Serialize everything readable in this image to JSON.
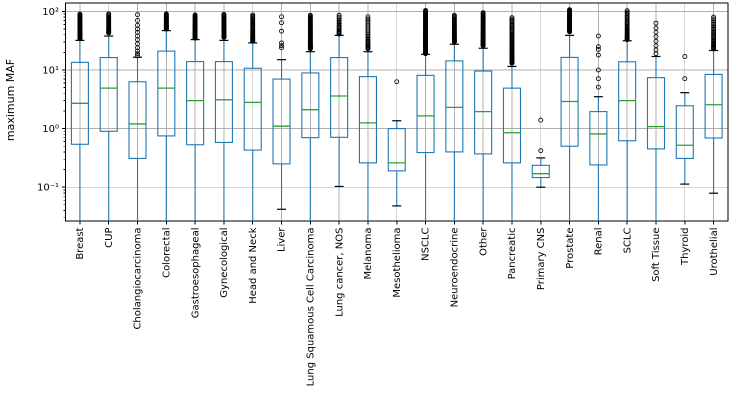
{
  "figure": {
    "title": "",
    "background": "#ffffff"
  },
  "chart_data": {
    "type": "boxplot",
    "orientation": "vertical",
    "yscale": "log",
    "ylabel": "maximum MAF",
    "xlabel": "",
    "ylim": [
      0.0265,
      139
    ],
    "ytick_values": [
      100,
      10,
      1,
      0.1
    ],
    "ytick_labels": [
      "10²",
      "10¹",
      "10⁰",
      "10⁻¹"
    ],
    "grid": true,
    "legend": null,
    "colors": {
      "box": "#1f77b4",
      "whisker": "#1f77b4",
      "median": "#2ca02c",
      "cap": "#000000",
      "flier": "#000000",
      "grid": "#b0b0b0",
      "spine": "#000000",
      "background": "#ffffff"
    },
    "categories": [
      "Breast",
      "CUP",
      "Cholangiocarcinoma",
      "Colorectal",
      "Gastroesophageal",
      "Gynecological",
      "Head and Neck",
      "Liver",
      "Lung Squamous Cell Carcinoma",
      "Lung cancer, NOS",
      "Melanoma",
      "Mesothelioma",
      "NSCLC",
      "Neuroendocrine",
      "Other",
      "Pancreatic",
      "Primary CNS",
      "Prostate",
      "Renal",
      "SCLC",
      "Soft Tissue",
      "Thyroid",
      "Urothelial"
    ],
    "boxes": [
      {
        "label": "Breast",
        "whisker_low": null,
        "q1": 0.54,
        "median": 2.7,
        "q3": 13.5,
        "whisker_high": 32,
        "flier_band": {
          "low": 34,
          "high": 90,
          "count": 45
        }
      },
      {
        "label": "CUP",
        "whisker_low": null,
        "q1": 0.9,
        "median": 4.9,
        "q3": 16.3,
        "whisker_high": 38,
        "flier_band": {
          "low": 43,
          "high": 91,
          "count": 26
        }
      },
      {
        "label": "Cholangiocarcinoma",
        "whisker_low": null,
        "q1": 0.31,
        "median": 1.2,
        "q3": 6.3,
        "whisker_high": 16.5,
        "fliers": [
          88,
          70,
          58,
          50,
          44,
          38,
          33,
          28,
          24,
          21,
          19,
          17.5
        ]
      },
      {
        "label": "Colorectal",
        "whisker_low": null,
        "q1": 0.75,
        "median": 4.9,
        "q3": 21,
        "whisker_high": 47,
        "flier_band": {
          "low": 50,
          "high": 91,
          "count": 40
        }
      },
      {
        "label": "Gastroesophageal",
        "whisker_low": null,
        "q1": 0.53,
        "median": 3.0,
        "q3": 13.9,
        "whisker_high": 33,
        "flier_band": {
          "low": 35,
          "high": 87,
          "count": 45
        }
      },
      {
        "label": "Gynecological",
        "whisker_low": null,
        "q1": 0.58,
        "median": 3.1,
        "q3": 13.9,
        "whisker_high": 32,
        "flier_band": {
          "low": 36,
          "high": 89,
          "count": 36
        }
      },
      {
        "label": "Head and Neck",
        "whisker_low": null,
        "q1": 0.43,
        "median": 2.8,
        "q3": 10.7,
        "whisker_high": 29,
        "flier_band": {
          "low": 31,
          "high": 87,
          "count": 32
        }
      },
      {
        "label": "Liver",
        "whisker_low": 0.042,
        "q1": 0.25,
        "median": 1.1,
        "q3": 7.0,
        "whisker_high": 15,
        "fliers": [
          81,
          64,
          46,
          29,
          26,
          24
        ]
      },
      {
        "label": "Lung Squamous Cell Carcinoma",
        "whisker_low": null,
        "q1": 0.7,
        "median": 2.1,
        "q3": 8.9,
        "whisker_high": 20.5,
        "flier_band": {
          "low": 23,
          "high": 86,
          "count": 55
        }
      },
      {
        "label": "Lung cancer, NOS",
        "whisker_low": 0.103,
        "q1": 0.71,
        "median": 3.6,
        "q3": 16.3,
        "whisker_high": 39,
        "flier_band": {
          "low": 41,
          "high": 86,
          "count": 16
        }
      },
      {
        "label": "Melanoma",
        "whisker_low": null,
        "q1": 0.26,
        "median": 1.25,
        "q3": 7.7,
        "whisker_high": 20.5,
        "flier_band": {
          "low": 23,
          "high": 81,
          "count": 22
        }
      },
      {
        "label": "Mesothelioma",
        "whisker_low": 0.048,
        "q1": 0.19,
        "median": 0.26,
        "q3": 1.0,
        "whisker_high": 1.36,
        "fliers": [
          6.3
        ]
      },
      {
        "label": "NSCLC",
        "whisker_low": null,
        "q1": 0.39,
        "median": 1.65,
        "q3": 8.1,
        "whisker_high": 18.5,
        "flier_band": {
          "low": 19,
          "high": 104,
          "count": 80
        }
      },
      {
        "label": "Neuroendocrine",
        "whisker_low": null,
        "q1": 0.4,
        "median": 2.3,
        "q3": 14.3,
        "whisker_high": 27.5,
        "flier_band": {
          "low": 30,
          "high": 86,
          "count": 36
        }
      },
      {
        "label": "Other",
        "whisker_low": null,
        "q1": 0.37,
        "median": 1.95,
        "q3": 9.6,
        "whisker_high": 23.5,
        "flier_band": {
          "low": 26,
          "high": 95,
          "count": 55
        }
      },
      {
        "label": "Pancreatic",
        "whisker_low": null,
        "q1": 0.26,
        "median": 0.85,
        "q3": 4.9,
        "whisker_high": 11.5,
        "flier_band": {
          "low": 13,
          "high": 78,
          "count": 50
        }
      },
      {
        "label": "Primary CNS",
        "whisker_low": 0.1,
        "q1": 0.146,
        "median": 0.17,
        "q3": 0.236,
        "whisker_high": 0.316,
        "fliers": [
          1.39,
          0.42
        ]
      },
      {
        "label": "Prostate",
        "whisker_low": null,
        "q1": 0.5,
        "median": 2.9,
        "q3": 16.4,
        "whisker_high": 39,
        "flier_band": {
          "low": 45,
          "high": 107,
          "count": 55
        }
      },
      {
        "label": "Renal",
        "whisker_low": null,
        "q1": 0.24,
        "median": 0.81,
        "q3": 1.95,
        "whisker_high": 3.5,
        "fliers": [
          38,
          25,
          22.5,
          18,
          10,
          7.1,
          5.1
        ]
      },
      {
        "label": "SCLC",
        "whisker_low": null,
        "q1": 0.62,
        "median": 3.0,
        "q3": 13.8,
        "whisker_high": 31.5,
        "flier_band": {
          "low": 33,
          "high": 103,
          "count": 30
        }
      },
      {
        "label": "Soft Tissue",
        "whisker_low": null,
        "q1": 0.45,
        "median": 1.08,
        "q3": 7.4,
        "whisker_high": 17,
        "fliers": [
          63,
          52,
          44,
          37,
          31,
          26,
          22,
          19
        ]
      },
      {
        "label": "Thyroid",
        "whisker_low": 0.113,
        "q1": 0.31,
        "median": 0.52,
        "q3": 2.45,
        "whisker_high": 4.1,
        "fliers": [
          17,
          7.1
        ]
      },
      {
        "label": "Urothelial",
        "whisker_low": 0.079,
        "q1": 0.69,
        "median": 2.55,
        "q3": 8.4,
        "whisker_high": 21.5,
        "flier_band": {
          "low": 23,
          "high": 80,
          "count": 26
        }
      }
    ]
  }
}
